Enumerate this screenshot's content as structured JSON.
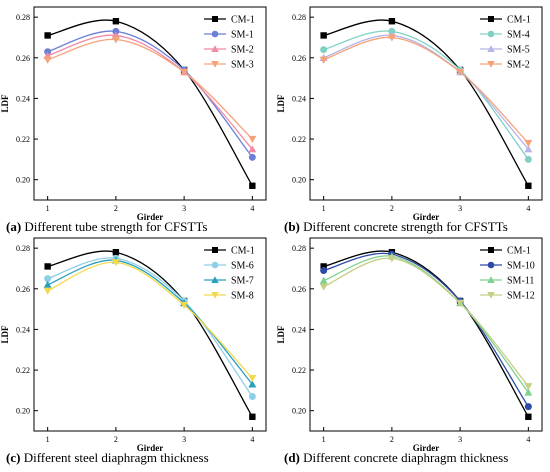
{
  "chart_data": [
    {
      "type": "line",
      "panel_letter": "(a)",
      "caption": "Different tube strength for CFSTTs",
      "xlabel": "Girder",
      "ylabel": "LDF",
      "x": [
        1,
        2,
        3,
        4
      ],
      "xticks": [
        "1",
        "2",
        "3",
        "4"
      ],
      "ylim": [
        0.19,
        0.285
      ],
      "yticks": [
        "0.20",
        "0.22",
        "0.24",
        "0.26",
        "0.28"
      ],
      "legend_position": "top-right",
      "series": [
        {
          "name": "CM-1",
          "color": "#000000",
          "marker": "square",
          "values": [
            0.271,
            0.278,
            0.254,
            0.197
          ]
        },
        {
          "name": "SM-1",
          "color": "#6b7fd7",
          "marker": "circle",
          "values": [
            0.263,
            0.273,
            0.254,
            0.211
          ]
        },
        {
          "name": "SM-2",
          "color": "#f08aa4",
          "marker": "triangle-up",
          "values": [
            0.261,
            0.271,
            0.253,
            0.215
          ]
        },
        {
          "name": "SM-3",
          "color": "#f5a27a",
          "marker": "triangle-down",
          "values": [
            0.259,
            0.269,
            0.253,
            0.22
          ]
        }
      ]
    },
    {
      "type": "line",
      "panel_letter": "(b)",
      "caption": "Different concrete strength for CFSTTs",
      "xlabel": "Girder",
      "ylabel": "LDF",
      "x": [
        1,
        2,
        3,
        4
      ],
      "xticks": [
        "1",
        "2",
        "3",
        "4"
      ],
      "ylim": [
        0.19,
        0.285
      ],
      "yticks": [
        "0.20",
        "0.22",
        "0.24",
        "0.26",
        "0.28"
      ],
      "legend_position": "top-right",
      "series": [
        {
          "name": "CM-1",
          "color": "#000000",
          "marker": "square",
          "values": [
            0.271,
            0.278,
            0.254,
            0.197
          ]
        },
        {
          "name": "SM-4",
          "color": "#7fd1c4",
          "marker": "circle",
          "values": [
            0.264,
            0.273,
            0.254,
            0.21
          ]
        },
        {
          "name": "SM-5",
          "color": "#b7b4e8",
          "marker": "triangle-up",
          "values": [
            0.26,
            0.271,
            0.253,
            0.215
          ]
        },
        {
          "name": "SM-2",
          "color": "#f5a27a",
          "marker": "triangle-down",
          "values": [
            0.259,
            0.27,
            0.253,
            0.218
          ]
        }
      ]
    },
    {
      "type": "line",
      "panel_letter": "(c)",
      "caption": "Different steel diaphragm thickness",
      "xlabel": "Girder",
      "ylabel": "LDF",
      "x": [
        1,
        2,
        3,
        4
      ],
      "xticks": [
        "1",
        "2",
        "3",
        "4"
      ],
      "ylim": [
        0.19,
        0.285
      ],
      "yticks": [
        "0.20",
        "0.22",
        "0.24",
        "0.26",
        "0.28"
      ],
      "legend_position": "top-right",
      "series": [
        {
          "name": "CM-1",
          "color": "#000000",
          "marker": "square",
          "values": [
            0.271,
            0.278,
            0.254,
            0.197
          ]
        },
        {
          "name": "SM-6",
          "color": "#8ecfe8",
          "marker": "circle",
          "values": [
            0.265,
            0.275,
            0.254,
            0.207
          ]
        },
        {
          "name": "SM-7",
          "color": "#2a9fbf",
          "marker": "triangle-up",
          "values": [
            0.262,
            0.274,
            0.253,
            0.213
          ]
        },
        {
          "name": "SM-8",
          "color": "#f2d94e",
          "marker": "triangle-down",
          "values": [
            0.259,
            0.273,
            0.252,
            0.216
          ]
        }
      ]
    },
    {
      "type": "line",
      "panel_letter": "(d)",
      "caption": "Different concrete diaphragm thickness",
      "xlabel": "Girder",
      "ylabel": "LDF",
      "x": [
        1,
        2,
        3,
        4
      ],
      "xticks": [
        "1",
        "2",
        "3",
        "4"
      ],
      "ylim": [
        0.19,
        0.285
      ],
      "yticks": [
        "0.20",
        "0.22",
        "0.24",
        "0.26",
        "0.28"
      ],
      "legend_position": "top-right",
      "series": [
        {
          "name": "CM-1",
          "color": "#000000",
          "marker": "square",
          "values": [
            0.271,
            0.278,
            0.254,
            0.197
          ]
        },
        {
          "name": "SM-10",
          "color": "#2e4aa8",
          "marker": "circle",
          "values": [
            0.269,
            0.277,
            0.254,
            0.202
          ]
        },
        {
          "name": "SM-11",
          "color": "#7fd18f",
          "marker": "triangle-up",
          "values": [
            0.264,
            0.276,
            0.253,
            0.209
          ]
        },
        {
          "name": "SM-12",
          "color": "#c4cf86",
          "marker": "triangle-down",
          "values": [
            0.261,
            0.275,
            0.253,
            0.212
          ]
        }
      ]
    }
  ]
}
